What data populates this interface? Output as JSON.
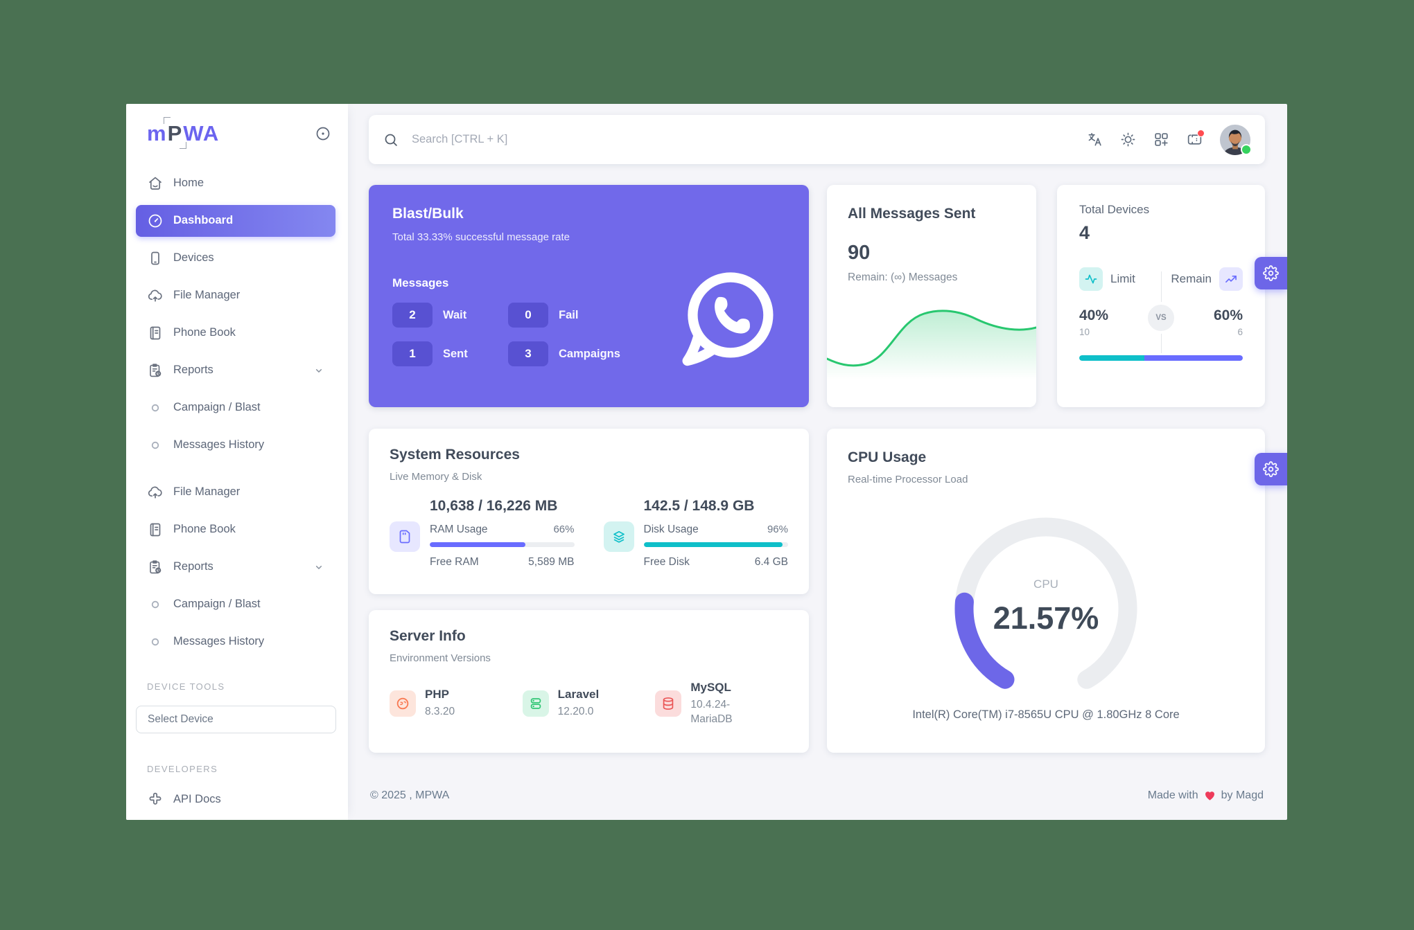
{
  "app": {
    "logo_m": "m",
    "logo_p": "P",
    "logo_wa": "WA"
  },
  "sidebar": {
    "items": [
      {
        "label": "Home",
        "icon": "home"
      },
      {
        "label": "Dashboard",
        "icon": "dashboard",
        "active": true
      },
      {
        "label": "Devices",
        "icon": "smartphone"
      },
      {
        "label": "File Manager",
        "icon": "cloud-upload"
      },
      {
        "label": "Phone Book",
        "icon": "phone-book"
      },
      {
        "label": "Reports",
        "icon": "report",
        "chevron": true
      },
      {
        "label": "Campaign / Blast",
        "icon": "circle",
        "sub": true
      },
      {
        "label": "Messages History",
        "icon": "circle",
        "sub": true
      },
      {
        "label": "File Manager",
        "icon": "cloud-upload",
        "gap": true
      },
      {
        "label": "Phone Book",
        "icon": "phone-book"
      },
      {
        "label": "Reports",
        "icon": "report",
        "chevron": true
      },
      {
        "label": "Campaign / Blast",
        "icon": "circle",
        "sub": true
      },
      {
        "label": "Messages History",
        "icon": "circle",
        "sub": true
      }
    ],
    "device_tools_header": "DEVICE TOOLS",
    "select_device_label": "Select Device",
    "developers_header": "DEVELOPERS",
    "api_docs_label": "API Docs"
  },
  "header": {
    "search_placeholder": "Search [CTRL + K]"
  },
  "blast": {
    "title": "Blast/Bulk",
    "subtitle": "Total 33.33% successful message rate",
    "messages_label": "Messages",
    "stats": [
      {
        "value": "2",
        "label": "Wait"
      },
      {
        "value": "0",
        "label": "Fail"
      },
      {
        "value": "1",
        "label": "Sent"
      },
      {
        "value": "3",
        "label": "Campaigns"
      }
    ]
  },
  "messages_sent": {
    "title": "All Messages Sent",
    "count": "90",
    "remain": "Remain: (∞) Messages"
  },
  "devices_card": {
    "title": "Total Devices",
    "count": "4",
    "limit_label": "Limit",
    "remain_label": "Remain",
    "vs": "VS",
    "limit_pct": "40%",
    "limit_value": "10",
    "remain_pct": "60%",
    "remain_value": "6",
    "limit_pct_num": 40,
    "remain_pct_num": 60
  },
  "system": {
    "title": "System Resources",
    "subtitle": "Live Memory & Disk",
    "ram": {
      "headline": "10,638 / 16,226 MB",
      "usage_label": "RAM Usage",
      "usage_pct": "66%",
      "pct": 66,
      "free_label": "Free RAM",
      "free_value": "5,589 MB"
    },
    "disk": {
      "headline": "142.5 / 148.9 GB",
      "usage_label": "Disk Usage",
      "usage_pct": "96%",
      "pct": 96,
      "free_label": "Free Disk",
      "free_value": "6.4 GB"
    }
  },
  "server": {
    "title": "Server Info",
    "subtitle": "Environment Versions",
    "items": [
      {
        "name": "PHP",
        "version": "8.3.20",
        "icon": "php",
        "color": "#f97a53",
        "bg": "#fde5dc"
      },
      {
        "name": "Laravel",
        "version": "12.20.0",
        "icon": "laravel",
        "color": "#2fc573",
        "bg": "#d9f5e7"
      },
      {
        "name": "MySQL",
        "version": "10.4.24-MariaDB",
        "icon": "mysql",
        "color": "#ea5455",
        "bg": "#fbdcdc"
      }
    ]
  },
  "cpu": {
    "title": "CPU Usage",
    "subtitle": "Real-time Processor Load",
    "gauge_label": "CPU",
    "gauge_value": "21.57%",
    "gauge_pct": 21.57,
    "caption": "Intel(R) Core(TM) i7-8565U CPU @ 1.80GHz 8 Core"
  },
  "footer": {
    "copyright": "© 2025 , MPWA",
    "made_left": "Made with",
    "made_right": "by Magd"
  }
}
